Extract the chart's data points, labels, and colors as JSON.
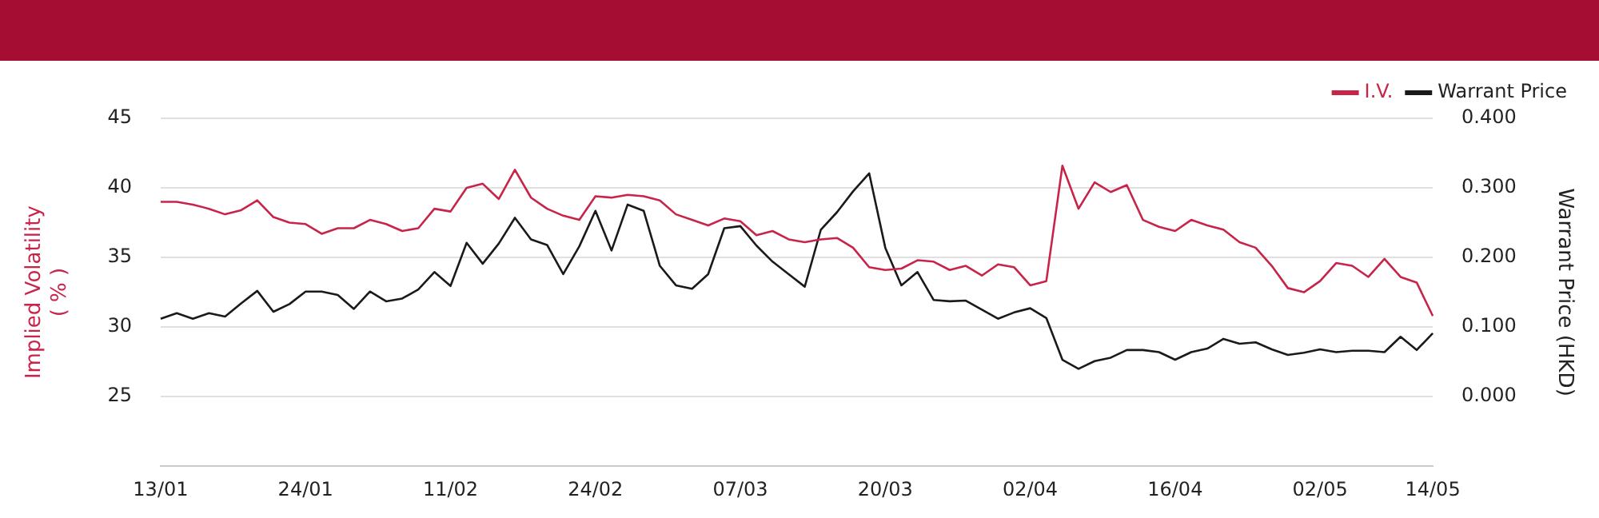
{
  "chart_data": {
    "type": "line",
    "ylabel": "Implied Volatility\n( % )",
    "y2label": "Warrant Price (HKD)",
    "categories": [
      "13/01",
      null,
      null,
      null,
      null,
      null,
      null,
      null,
      null,
      "24/01",
      null,
      null,
      null,
      null,
      null,
      null,
      null,
      null,
      "11/02",
      null,
      null,
      null,
      null,
      null,
      null,
      null,
      null,
      "24/02",
      null,
      null,
      null,
      null,
      null,
      null,
      null,
      null,
      "07/03",
      null,
      null,
      null,
      null,
      null,
      null,
      null,
      null,
      "20/03",
      null,
      null,
      null,
      null,
      null,
      null,
      null,
      null,
      "02/04",
      null,
      null,
      null,
      null,
      null,
      null,
      null,
      null,
      "16/04",
      null,
      null,
      null,
      null,
      null,
      null,
      null,
      null,
      "02/05",
      null,
      null,
      null,
      null,
      null,
      null,
      "14/05"
    ],
    "series": [
      {
        "name": "I.V.",
        "color": "#c8244a",
        "values": [
          39.0,
          39.0,
          38.8,
          38.5,
          38.1,
          38.4,
          39.1,
          37.9,
          37.5,
          37.4,
          36.7,
          37.1,
          37.1,
          37.7,
          37.4,
          36.9,
          37.1,
          38.5,
          38.3,
          40.0,
          40.3,
          39.2,
          41.3,
          39.3,
          38.5,
          38.0,
          37.7,
          39.4,
          39.3,
          39.5,
          39.4,
          39.1,
          38.1,
          37.7,
          37.3,
          37.8,
          37.6,
          36.6,
          36.9,
          36.3,
          36.1,
          36.3,
          36.4,
          35.7,
          34.3,
          34.1,
          34.2,
          34.8,
          34.7,
          34.1,
          34.4,
          33.7,
          34.5,
          34.3,
          33.0,
          33.3,
          41.6,
          38.5,
          40.4,
          39.7,
          40.2,
          37.7,
          37.2,
          36.9,
          37.7,
          37.3,
          37.0,
          36.1,
          35.7,
          34.4,
          32.8,
          32.5,
          33.3,
          34.6,
          34.4,
          33.6,
          34.9,
          33.6,
          33.2,
          30.8
        ]
      },
      {
        "name": "Warrant Price",
        "color": "#1a1a1a",
        "axis": "y2",
        "values": [
          0.112,
          0.12,
          0.112,
          0.12,
          0.115,
          0.134,
          0.152,
          0.122,
          0.133,
          0.151,
          0.151,
          0.146,
          0.126,
          0.151,
          0.137,
          0.141,
          0.154,
          0.179,
          0.159,
          0.221,
          0.191,
          0.22,
          0.257,
          0.226,
          0.218,
          0.176,
          0.216,
          0.267,
          0.21,
          0.276,
          0.267,
          0.188,
          0.16,
          0.155,
          0.176,
          0.242,
          0.245,
          0.217,
          0.194,
          0.176,
          0.158,
          0.24,
          0.265,
          0.295,
          0.321,
          0.214,
          0.16,
          0.179,
          0.139,
          0.137,
          0.138,
          0.125,
          0.112,
          0.121,
          0.127,
          0.113,
          0.053,
          0.04,
          0.051,
          0.056,
          0.067,
          0.067,
          0.064,
          0.053,
          0.064,
          0.069,
          0.083,
          0.076,
          0.078,
          0.068,
          0.06,
          0.063,
          0.068,
          0.064,
          0.066,
          0.066,
          0.064,
          0.086,
          0.067,
          0.091
        ]
      }
    ],
    "ylim": [
      20,
      45
    ],
    "yticks": [
      25,
      30,
      35,
      40,
      45
    ],
    "y2lim": [
      -0.1,
      0.4
    ],
    "y2ticks": [
      {
        "value": 0,
        "label": "0.000"
      },
      {
        "value": 0.1,
        "label": "0.100"
      },
      {
        "value": 0.2,
        "label": "0.200"
      },
      {
        "value": 0.3,
        "label": "0.300"
      },
      {
        "value": 0.4,
        "label": "0.400"
      }
    ],
    "grid": "y",
    "legend": "top right",
    "marker": "none",
    "line_style": "solid"
  }
}
